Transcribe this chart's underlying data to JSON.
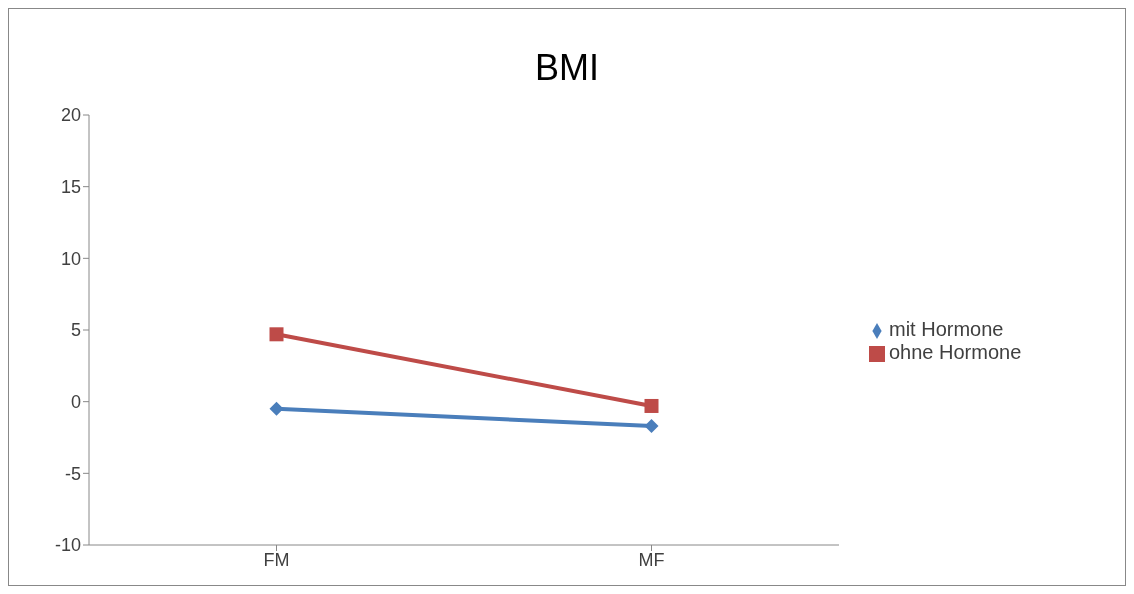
{
  "chart_data": {
    "type": "line",
    "title": "BMI",
    "categories": [
      "FM",
      "MF"
    ],
    "series": [
      {
        "name": "mit Hormone",
        "color": "#4a7ebb",
        "marker": "diamond",
        "values": [
          -0.5,
          -1.7
        ]
      },
      {
        "name": "ohne Hormone",
        "color": "#be4b48",
        "marker": "square",
        "values": [
          4.7,
          -0.3
        ]
      }
    ],
    "ylim": [
      -10,
      20
    ],
    "yticks": [
      -10,
      -5,
      0,
      5,
      10,
      15,
      20
    ],
    "grid": false,
    "legend": "right"
  }
}
